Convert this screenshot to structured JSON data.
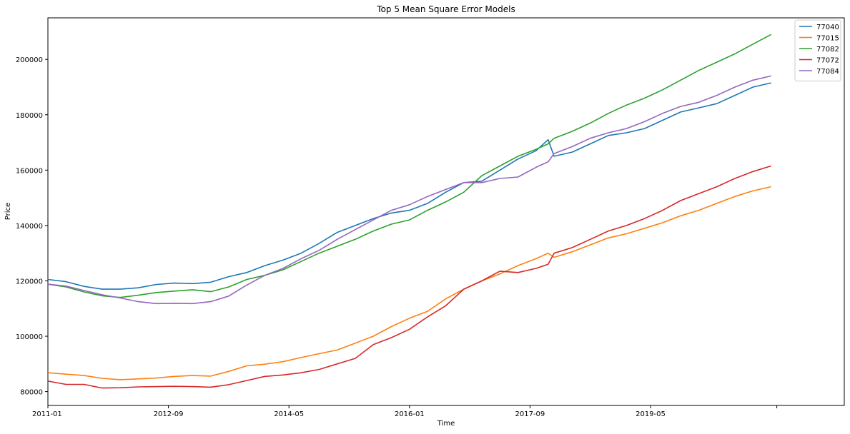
{
  "chart_data": {
    "type": "line",
    "title": "Top 5 Mean Square Error Models",
    "xlabel": "Time",
    "ylabel": "Price",
    "x_tick_labels": [
      "2011-01",
      "2012-09",
      "2014-05",
      "2016-01",
      "2017-09",
      "2019-05"
    ],
    "y_tick_labels": [
      "80000",
      "100000",
      "120000",
      "140000",
      "160000",
      "180000",
      "200000"
    ],
    "ylim": [
      75000,
      215000
    ],
    "grid": false,
    "legend_position": "top-right",
    "series": [
      {
        "name": "77040",
        "color": "#1f77b4",
        "points": [
          [
            "2011-01",
            120500
          ],
          [
            "2011-04",
            119700
          ],
          [
            "2011-07",
            118000
          ],
          [
            "2011-10",
            117000
          ],
          [
            "2012-01",
            117000
          ],
          [
            "2012-04",
            117500
          ],
          [
            "2012-07",
            118700
          ],
          [
            "2012-10",
            119200
          ],
          [
            "2013-01",
            119000
          ],
          [
            "2013-04",
            119500
          ],
          [
            "2013-07",
            121500
          ],
          [
            "2013-10",
            123000
          ],
          [
            "2014-01",
            125500
          ],
          [
            "2014-04",
            127500
          ],
          [
            "2014-07",
            130000
          ],
          [
            "2014-10",
            133500
          ],
          [
            "2015-01",
            137500
          ],
          [
            "2015-04",
            140000
          ],
          [
            "2015-07",
            142500
          ],
          [
            "2015-10",
            144500
          ],
          [
            "2016-01",
            145500
          ],
          [
            "2016-04",
            148000
          ],
          [
            "2016-07",
            152000
          ],
          [
            "2016-10",
            155500
          ],
          [
            "2017-01",
            156000
          ],
          [
            "2017-04",
            160000
          ],
          [
            "2017-07",
            164000
          ],
          [
            "2017-10",
            167000
          ],
          [
            "2017-12",
            171000
          ],
          [
            "2018-01",
            165000
          ],
          [
            "2018-04",
            166500
          ],
          [
            "2018-07",
            169500
          ],
          [
            "2018-10",
            172500
          ],
          [
            "2019-01",
            173500
          ],
          [
            "2019-04",
            175000
          ],
          [
            "2019-07",
            178000
          ],
          [
            "2019-10",
            181000
          ],
          [
            "2020-01",
            182500
          ],
          [
            "2020-04",
            184000
          ],
          [
            "2020-07",
            187000
          ],
          [
            "2020-10",
            190000
          ],
          [
            "2021-01",
            191500
          ]
        ]
      },
      {
        "name": "77015",
        "color": "#ff7f0e",
        "points": [
          [
            "2011-01",
            86800
          ],
          [
            "2011-04",
            86300
          ],
          [
            "2011-07",
            85800
          ],
          [
            "2011-10",
            84800
          ],
          [
            "2012-01",
            84300
          ],
          [
            "2012-04",
            84600
          ],
          [
            "2012-07",
            84900
          ],
          [
            "2012-10",
            85500
          ],
          [
            "2013-01",
            85800
          ],
          [
            "2013-04",
            85600
          ],
          [
            "2013-07",
            87300
          ],
          [
            "2013-10",
            89300
          ],
          [
            "2014-01",
            89900
          ],
          [
            "2014-04",
            90800
          ],
          [
            "2014-07",
            92300
          ],
          [
            "2014-10",
            93700
          ],
          [
            "2015-01",
            95000
          ],
          [
            "2015-04",
            97500
          ],
          [
            "2015-07",
            100000
          ],
          [
            "2015-10",
            103500
          ],
          [
            "2016-01",
            106500
          ],
          [
            "2016-04",
            109000
          ],
          [
            "2016-07",
            113500
          ],
          [
            "2016-10",
            117000
          ],
          [
            "2017-01",
            120000
          ],
          [
            "2017-04",
            122500
          ],
          [
            "2017-07",
            125500
          ],
          [
            "2017-10",
            128000
          ],
          [
            "2017-12",
            130000
          ],
          [
            "2018-01",
            128500
          ],
          [
            "2018-04",
            130500
          ],
          [
            "2018-07",
            133000
          ],
          [
            "2018-10",
            135500
          ],
          [
            "2019-01",
            137000
          ],
          [
            "2019-04",
            139000
          ],
          [
            "2019-07",
            141000
          ],
          [
            "2019-10",
            143500
          ],
          [
            "2020-01",
            145500
          ],
          [
            "2020-04",
            148000
          ],
          [
            "2020-07",
            150500
          ],
          [
            "2020-10",
            152500
          ],
          [
            "2021-01",
            154000
          ]
        ]
      },
      {
        "name": "77082",
        "color": "#2ca02c",
        "points": [
          [
            "2011-01",
            118800
          ],
          [
            "2011-04",
            117800
          ],
          [
            "2011-07",
            116000
          ],
          [
            "2011-10",
            114600
          ],
          [
            "2012-01",
            114000
          ],
          [
            "2012-04",
            114800
          ],
          [
            "2012-07",
            115800
          ],
          [
            "2012-10",
            116300
          ],
          [
            "2013-01",
            116800
          ],
          [
            "2013-04",
            116100
          ],
          [
            "2013-07",
            117800
          ],
          [
            "2013-10",
            120500
          ],
          [
            "2014-01",
            122000
          ],
          [
            "2014-04",
            124000
          ],
          [
            "2014-07",
            127000
          ],
          [
            "2014-10",
            130000
          ],
          [
            "2015-01",
            132500
          ],
          [
            "2015-04",
            135000
          ],
          [
            "2015-07",
            138000
          ],
          [
            "2015-10",
            140500
          ],
          [
            "2016-01",
            142000
          ],
          [
            "2016-04",
            145500
          ],
          [
            "2016-07",
            148500
          ],
          [
            "2016-10",
            152000
          ],
          [
            "2017-01",
            158000
          ],
          [
            "2017-04",
            161500
          ],
          [
            "2017-07",
            165000
          ],
          [
            "2017-10",
            167500
          ],
          [
            "2017-12",
            169500
          ],
          [
            "2018-01",
            171500
          ],
          [
            "2018-04",
            174000
          ],
          [
            "2018-07",
            177000
          ],
          [
            "2018-10",
            180500
          ],
          [
            "2019-01",
            183500
          ],
          [
            "2019-04",
            186000
          ],
          [
            "2019-07",
            189000
          ],
          [
            "2019-10",
            192500
          ],
          [
            "2020-01",
            196000
          ],
          [
            "2020-04",
            199000
          ],
          [
            "2020-07",
            202000
          ],
          [
            "2020-10",
            205500
          ],
          [
            "2021-01",
            209000
          ]
        ]
      },
      {
        "name": "77072",
        "color": "#d62728",
        "points": [
          [
            "2011-01",
            83800
          ],
          [
            "2011-04",
            82600
          ],
          [
            "2011-07",
            82600
          ],
          [
            "2011-10",
            81300
          ],
          [
            "2012-01",
            81400
          ],
          [
            "2012-04",
            81700
          ],
          [
            "2012-07",
            81800
          ],
          [
            "2012-10",
            81900
          ],
          [
            "2013-01",
            81800
          ],
          [
            "2013-04",
            81600
          ],
          [
            "2013-07",
            82500
          ],
          [
            "2013-10",
            84000
          ],
          [
            "2014-01",
            85500
          ],
          [
            "2014-04",
            86000
          ],
          [
            "2014-07",
            86800
          ],
          [
            "2014-10",
            88000
          ],
          [
            "2015-01",
            90000
          ],
          [
            "2015-04",
            92000
          ],
          [
            "2015-07",
            97000
          ],
          [
            "2015-10",
            99500
          ],
          [
            "2016-01",
            102500
          ],
          [
            "2016-04",
            107000
          ],
          [
            "2016-07",
            111000
          ],
          [
            "2016-10",
            117000
          ],
          [
            "2017-01",
            120000
          ],
          [
            "2017-04",
            123500
          ],
          [
            "2017-07",
            123000
          ],
          [
            "2017-10",
            124500
          ],
          [
            "2017-12",
            126000
          ],
          [
            "2018-01",
            130000
          ],
          [
            "2018-04",
            132000
          ],
          [
            "2018-07",
            135000
          ],
          [
            "2018-10",
            138000
          ],
          [
            "2019-01",
            140000
          ],
          [
            "2019-04",
            142500
          ],
          [
            "2019-07",
            145500
          ],
          [
            "2019-10",
            149000
          ],
          [
            "2020-01",
            151500
          ],
          [
            "2020-04",
            154000
          ],
          [
            "2020-07",
            157000
          ],
          [
            "2020-10",
            159500
          ],
          [
            "2021-01",
            161500
          ]
        ]
      },
      {
        "name": "77084",
        "color": "#9467bd",
        "points": [
          [
            "2011-01",
            118800
          ],
          [
            "2011-04",
            118100
          ],
          [
            "2011-07",
            116500
          ],
          [
            "2011-10",
            115000
          ],
          [
            "2012-01",
            113800
          ],
          [
            "2012-04",
            112500
          ],
          [
            "2012-07",
            111800
          ],
          [
            "2012-10",
            111900
          ],
          [
            "2013-01",
            111800
          ],
          [
            "2013-04",
            112500
          ],
          [
            "2013-07",
            114500
          ],
          [
            "2013-10",
            118500
          ],
          [
            "2014-01",
            122000
          ],
          [
            "2014-04",
            124500
          ],
          [
            "2014-07",
            128000
          ],
          [
            "2014-10",
            131000
          ],
          [
            "2015-01",
            135000
          ],
          [
            "2015-04",
            138500
          ],
          [
            "2015-07",
            142000
          ],
          [
            "2015-10",
            145500
          ],
          [
            "2016-01",
            147500
          ],
          [
            "2016-04",
            150500
          ],
          [
            "2016-07",
            153000
          ],
          [
            "2016-10",
            155500
          ],
          [
            "2017-01",
            155500
          ],
          [
            "2017-04",
            157000
          ],
          [
            "2017-07",
            157500
          ],
          [
            "2017-10",
            161000
          ],
          [
            "2017-12",
            163000
          ],
          [
            "2018-01",
            166000
          ],
          [
            "2018-04",
            168500
          ],
          [
            "2018-07",
            171500
          ],
          [
            "2018-10",
            173500
          ],
          [
            "2019-01",
            175000
          ],
          [
            "2019-04",
            177500
          ],
          [
            "2019-07",
            180500
          ],
          [
            "2019-10",
            183000
          ],
          [
            "2020-01",
            184500
          ],
          [
            "2020-04",
            187000
          ],
          [
            "2020-07",
            190000
          ],
          [
            "2020-10",
            192500
          ],
          [
            "2021-01",
            194000
          ]
        ]
      }
    ]
  }
}
